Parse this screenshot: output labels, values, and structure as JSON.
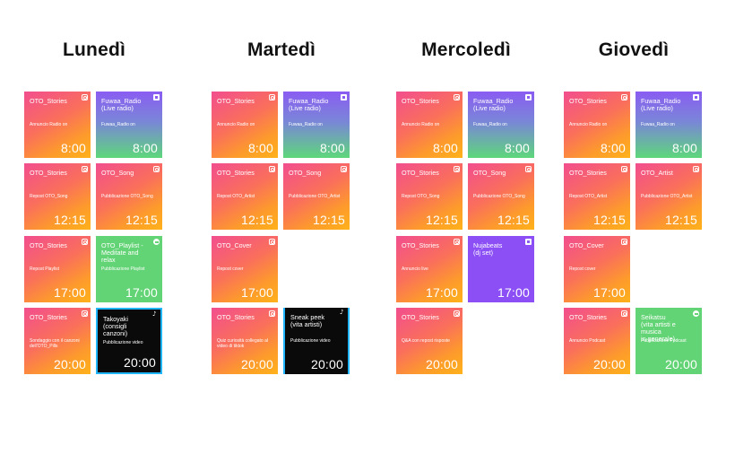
{
  "days": [
    {
      "name": "Lunedì",
      "cards": [
        {
          "title": "OTO_Stories",
          "subtitle": "Annuncio Radio on",
          "time": "8:00"
        },
        {
          "title": "Fuwaa_Radio\n(Live radio)",
          "subtitle": "Fuwaa_Radio on",
          "time": "8:00"
        },
        {
          "title": "OTO_Stories",
          "subtitle": "Repost OTO_Song",
          "time": "12:15"
        },
        {
          "title": "OTO_Song",
          "subtitle": "Pubblicazione OTO_Song",
          "time": "12:15"
        },
        {
          "title": "OTO_Stories",
          "subtitle": "Repost Playlist",
          "time": "17:00"
        },
        {
          "title": "OTO_Playlist -\nMeditate and relax",
          "subtitle": "Pubblicazione Playlist",
          "time": "17:00"
        },
        {
          "title": "OTO_Stories",
          "subtitle": "Sondaggio con il canzoni\ndell'OTO_Pills",
          "time": "20:00"
        },
        {
          "title": "Takoyaki\n(consigli canzoni)",
          "subtitle": "Pubblicazione video",
          "time": "20:00"
        }
      ]
    },
    {
      "name": "Martedì",
      "cards": [
        {
          "title": "OTO_Stories",
          "subtitle": "Annuncio Radio on",
          "time": "8:00"
        },
        {
          "title": "Fuwaa_Radio\n(Live radio)",
          "subtitle": "Fuwaa_Radio on",
          "time": "8:00"
        },
        {
          "title": "OTO_Stories",
          "subtitle": "Repost OTO_Artist",
          "time": "12:15"
        },
        {
          "title": "OTO_Song",
          "subtitle": "Pubblicazione OTO_Artist",
          "time": "12:15"
        },
        {
          "title": "OTO_Cover",
          "subtitle": "Repost cover",
          "time": "17:00"
        },
        {
          "title": "OTO_Stories",
          "subtitle": "Quiz curiosità collegato al\nvideo di tiktok",
          "time": "20:00"
        },
        {
          "title": "Sneak peek\n(vita artisti)",
          "subtitle": "Pubblicazione video",
          "time": "20:00"
        }
      ]
    },
    {
      "name": "Mercoledì",
      "cards": [
        {
          "title": "OTO_Stories",
          "subtitle": "Annuncio Radio on",
          "time": "8:00"
        },
        {
          "title": "Fuwaa_Radio\n(Live radio)",
          "subtitle": "Fuwaa_Radio on",
          "time": "8:00"
        },
        {
          "title": "OTO_Stories",
          "subtitle": "Repost OTO_Song",
          "time": "12:15"
        },
        {
          "title": "OTO_Song",
          "subtitle": "Pubblicazione OTO_Song",
          "time": "12:15"
        },
        {
          "title": "OTO_Stories",
          "subtitle": "Annuncio live",
          "time": "17:00"
        },
        {
          "title": "Nujabeats\n(dj set)",
          "subtitle": "",
          "time": "17:00"
        },
        {
          "title": "OTO_Stories",
          "subtitle": "Q&A con repost risposte",
          "time": "20:00"
        }
      ]
    },
    {
      "name": "Giovedì",
      "cards": [
        {
          "title": "OTO_Stories",
          "subtitle": "Annuncio Radio on",
          "time": "8:00"
        },
        {
          "title": "Fuwaa_Radio\n(Live radio)",
          "subtitle": "Fuwaa_Radio on",
          "time": "8:00"
        },
        {
          "title": "OTO_Stories",
          "subtitle": "Repost OTO_Artist",
          "time": "12:15"
        },
        {
          "title": "OTO_Artist",
          "subtitle": "Pubblicazione OTO_Artist",
          "time": "12:15"
        },
        {
          "title": "OTO_Cover",
          "subtitle": "Repost cover",
          "time": "17:00"
        },
        {
          "title": "OTO_Stories",
          "subtitle": "Annuncio Podcast",
          "time": "20:00"
        },
        {
          "title": "Seikatsu\n(vita artisti e musica\nin generale)",
          "subtitle": "Pubblicazione Podcast",
          "time": "20:00"
        }
      ]
    }
  ],
  "platforms": {
    "instagram": "instagram-icon",
    "twitch": "twitch-icon",
    "spotify": "spotify-icon",
    "tiktok": "tiktok-icon"
  },
  "colors": {
    "instagram_from": "#f24e8e",
    "instagram_to": "#ffb21a",
    "twitch_from": "#8a5cf2",
    "twitch_to": "#5ed77b",
    "spotify": "#63d475",
    "tiktok": "#0a0a0a",
    "tiktok_border": "#1fb5ff",
    "purple": "#8b4ff5"
  }
}
